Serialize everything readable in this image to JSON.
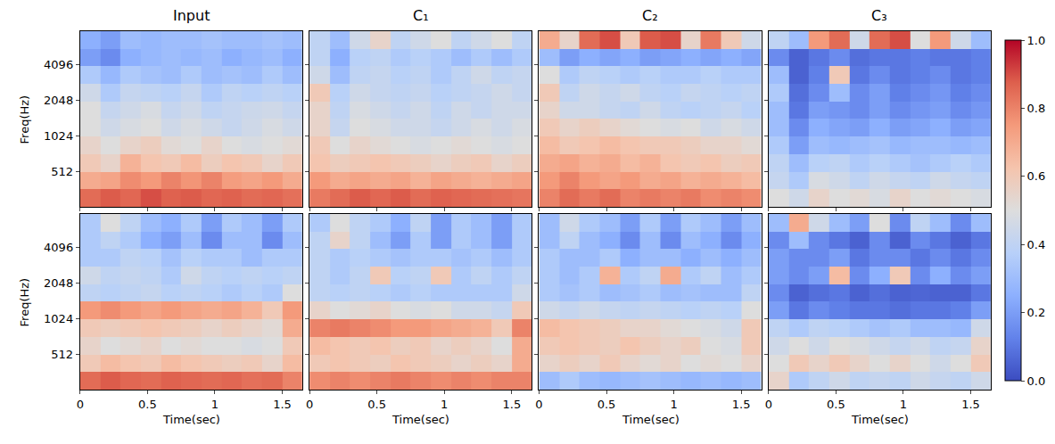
{
  "chart_data": {
    "type": "heatmap",
    "x_edges": [
      0,
      0.15,
      0.3,
      0.45,
      0.6,
      0.75,
      0.9,
      1.05,
      1.2,
      1.35,
      1.5,
      1.65
    ],
    "y_edges": [
      260,
      366,
      515,
      724,
      1019,
      1434,
      2018,
      2839,
      3995,
      5621,
      7900
    ],
    "xlim": [
      0,
      1.65
    ],
    "ylim": [
      260,
      7900
    ],
    "log": "y",
    "xticks": [
      0,
      0.5,
      1,
      1.5
    ],
    "yticks": [
      512,
      1024,
      2048,
      4096
    ],
    "colorbar": {
      "range": [
        0,
        1
      ],
      "ticks": [
        {
          "value": 0,
          "label": "0.0"
        },
        {
          "value": 0.2,
          "label": "0.2"
        },
        {
          "value": 0.4,
          "label": "0.4"
        },
        {
          "value": 0.6,
          "label": "0.6"
        },
        {
          "value": 0.8,
          "label": "0.8"
        },
        {
          "value": 1,
          "label": "1.0"
        }
      ]
    },
    "panels": [
      {
        "title": "Input",
        "ylabel": "Freq(Hz)",
        "tick_labels": "y",
        "z": [
          [
            0.85,
            0.88,
            0.86,
            0.9,
            0.87,
            0.88,
            0.86,
            0.87,
            0.85,
            0.86,
            0.84
          ],
          [
            0.7,
            0.72,
            0.78,
            0.75,
            0.8,
            0.76,
            0.8,
            0.74,
            0.72,
            0.75,
            0.7
          ],
          [
            0.6,
            0.55,
            0.68,
            0.62,
            0.6,
            0.65,
            0.58,
            0.62,
            0.6,
            0.55,
            0.6
          ],
          [
            0.55,
            0.5,
            0.55,
            0.58,
            0.52,
            0.5,
            0.55,
            0.5,
            0.48,
            0.5,
            0.52
          ],
          [
            0.5,
            0.45,
            0.48,
            0.5,
            0.45,
            0.48,
            0.45,
            0.42,
            0.45,
            0.48,
            0.45
          ],
          [
            0.5,
            0.42,
            0.45,
            0.48,
            0.42,
            0.45,
            0.4,
            0.42,
            0.44,
            0.45,
            0.42
          ],
          [
            0.45,
            0.35,
            0.42,
            0.4,
            0.38,
            0.42,
            0.35,
            0.4,
            0.38,
            0.4,
            0.38
          ],
          [
            0.35,
            0.28,
            0.35,
            0.32,
            0.3,
            0.35,
            0.3,
            0.32,
            0.3,
            0.35,
            0.3
          ],
          [
            0.2,
            0.15,
            0.25,
            0.28,
            0.3,
            0.28,
            0.3,
            0.25,
            0.28,
            0.3,
            0.25
          ],
          [
            0.25,
            0.2,
            0.3,
            0.28,
            0.3,
            0.3,
            0.32,
            0.3,
            0.3,
            0.32,
            0.3
          ]
        ]
      },
      {
        "title": "C₁",
        "tick_labels": false,
        "z": [
          [
            0.82,
            0.85,
            0.88,
            0.86,
            0.88,
            0.85,
            0.87,
            0.86,
            0.85,
            0.84,
            0.83
          ],
          [
            0.75,
            0.7,
            0.72,
            0.7,
            0.72,
            0.68,
            0.72,
            0.7,
            0.68,
            0.7,
            0.72
          ],
          [
            0.62,
            0.58,
            0.6,
            0.62,
            0.6,
            0.58,
            0.55,
            0.58,
            0.6,
            0.55,
            0.58
          ],
          [
            0.6,
            0.5,
            0.55,
            0.52,
            0.5,
            0.48,
            0.5,
            0.52,
            0.5,
            0.48,
            0.5
          ],
          [
            0.55,
            0.42,
            0.5,
            0.48,
            0.45,
            0.45,
            0.42,
            0.45,
            0.48,
            0.45,
            0.48
          ],
          [
            0.55,
            0.4,
            0.48,
            0.45,
            0.42,
            0.45,
            0.4,
            0.45,
            0.42,
            0.45,
            0.45
          ],
          [
            0.6,
            0.38,
            0.45,
            0.42,
            0.4,
            0.42,
            0.38,
            0.4,
            0.42,
            0.45,
            0.42
          ],
          [
            0.45,
            0.3,
            0.4,
            0.42,
            0.38,
            0.4,
            0.35,
            0.4,
            0.45,
            0.4,
            0.42
          ],
          [
            0.4,
            0.25,
            0.38,
            0.4,
            0.35,
            0.38,
            0.35,
            0.3,
            0.35,
            0.3,
            0.35
          ],
          [
            0.4,
            0.3,
            0.45,
            0.55,
            0.4,
            0.45,
            0.5,
            0.4,
            0.45,
            0.5,
            0.4
          ]
        ]
      },
      {
        "title": "C₂",
        "tick_labels": false,
        "z": [
          [
            0.8,
            0.85,
            0.82,
            0.85,
            0.8,
            0.82,
            0.8,
            0.82,
            0.78,
            0.8,
            0.78
          ],
          [
            0.75,
            0.8,
            0.75,
            0.72,
            0.75,
            0.7,
            0.72,
            0.68,
            0.7,
            0.68,
            0.65
          ],
          [
            0.7,
            0.72,
            0.68,
            0.7,
            0.65,
            0.68,
            0.62,
            0.6,
            0.62,
            0.58,
            0.6
          ],
          [
            0.65,
            0.6,
            0.62,
            0.65,
            0.62,
            0.6,
            0.6,
            0.58,
            0.55,
            0.55,
            0.52
          ],
          [
            0.6,
            0.55,
            0.58,
            0.55,
            0.52,
            0.5,
            0.48,
            0.5,
            0.45,
            0.48,
            0.45
          ],
          [
            0.55,
            0.45,
            0.45,
            0.42,
            0.4,
            0.45,
            0.4,
            0.38,
            0.4,
            0.42,
            0.38
          ],
          [
            0.6,
            0.4,
            0.45,
            0.42,
            0.45,
            0.4,
            0.38,
            0.42,
            0.4,
            0.38,
            0.4
          ],
          [
            0.5,
            0.35,
            0.4,
            0.38,
            0.35,
            0.38,
            0.35,
            0.35,
            0.38,
            0.35,
            0.35
          ],
          [
            0.3,
            0.2,
            0.25,
            0.22,
            0.25,
            0.2,
            0.22,
            0.25,
            0.22,
            0.25,
            0.22
          ],
          [
            0.7,
            0.55,
            0.85,
            0.9,
            0.6,
            0.88,
            0.9,
            0.55,
            0.82,
            0.6,
            0.45
          ]
        ]
      },
      {
        "title": "C₃",
        "tick_labels": false,
        "z": [
          [
            0.5,
            0.45,
            0.55,
            0.5,
            0.52,
            0.48,
            0.55,
            0.5,
            0.52,
            0.5,
            0.48
          ],
          [
            0.42,
            0.35,
            0.48,
            0.45,
            0.4,
            0.45,
            0.42,
            0.4,
            0.45,
            0.42,
            0.4
          ],
          [
            0.4,
            0.3,
            0.38,
            0.4,
            0.35,
            0.38,
            0.35,
            0.32,
            0.35,
            0.38,
            0.35
          ],
          [
            0.35,
            0.2,
            0.3,
            0.28,
            0.3,
            0.32,
            0.28,
            0.3,
            0.3,
            0.28,
            0.3
          ],
          [
            0.3,
            0.15,
            0.25,
            0.22,
            0.2,
            0.25,
            0.2,
            0.22,
            0.25,
            0.2,
            0.22
          ],
          [
            0.3,
            0.1,
            0.2,
            0.18,
            0.15,
            0.2,
            0.15,
            0.18,
            0.2,
            0.15,
            0.18
          ],
          [
            0.35,
            0.08,
            0.15,
            0.3,
            0.15,
            0.2,
            0.12,
            0.15,
            0.18,
            0.12,
            0.15
          ],
          [
            0.3,
            0.05,
            0.12,
            0.6,
            0.1,
            0.15,
            0.1,
            0.12,
            0.15,
            0.1,
            0.12
          ],
          [
            0.15,
            0.05,
            0.1,
            0.15,
            0.08,
            0.1,
            0.1,
            0.12,
            0.1,
            0.1,
            0.12
          ],
          [
            0.4,
            0.3,
            0.75,
            0.85,
            0.45,
            0.85,
            0.9,
            0.5,
            0.75,
            0.45,
            0.3
          ]
        ]
      },
      {
        "xlabel": "Time(sec)",
        "ylabel": "Freq(Hz)",
        "tick_labels": true,
        "z": [
          [
            0.85,
            0.88,
            0.86,
            0.85,
            0.87,
            0.86,
            0.85,
            0.86,
            0.84,
            0.85,
            0.8
          ],
          [
            0.6,
            0.65,
            0.62,
            0.6,
            0.65,
            0.62,
            0.6,
            0.58,
            0.6,
            0.55,
            0.65
          ],
          [
            0.55,
            0.5,
            0.52,
            0.55,
            0.5,
            0.52,
            0.5,
            0.5,
            0.48,
            0.5,
            0.6
          ],
          [
            0.6,
            0.58,
            0.6,
            0.62,
            0.6,
            0.58,
            0.55,
            0.58,
            0.55,
            0.52,
            0.7
          ],
          [
            0.75,
            0.78,
            0.75,
            0.72,
            0.75,
            0.72,
            0.7,
            0.72,
            0.68,
            0.6,
            0.75
          ],
          [
            0.4,
            0.38,
            0.4,
            0.42,
            0.38,
            0.4,
            0.38,
            0.35,
            0.38,
            0.35,
            0.5
          ],
          [
            0.45,
            0.4,
            0.42,
            0.4,
            0.35,
            0.45,
            0.4,
            0.38,
            0.4,
            0.38,
            0.4
          ],
          [
            0.35,
            0.35,
            0.4,
            0.38,
            0.32,
            0.38,
            0.35,
            0.35,
            0.3,
            0.35,
            0.35
          ],
          [
            0.35,
            0.4,
            0.35,
            0.25,
            0.2,
            0.3,
            0.15,
            0.3,
            0.3,
            0.15,
            0.3
          ],
          [
            0.35,
            0.5,
            0.4,
            0.3,
            0.25,
            0.35,
            0.2,
            0.35,
            0.3,
            0.2,
            0.35
          ]
        ]
      },
      {
        "xlabel": "Time(sec)",
        "tick_labels": "x",
        "z": [
          [
            0.78,
            0.8,
            0.78,
            0.8,
            0.82,
            0.8,
            0.78,
            0.8,
            0.78,
            0.8,
            0.8
          ],
          [
            0.6,
            0.62,
            0.6,
            0.58,
            0.62,
            0.6,
            0.58,
            0.55,
            0.58,
            0.55,
            0.7
          ],
          [
            0.65,
            0.62,
            0.6,
            0.62,
            0.58,
            0.6,
            0.55,
            0.58,
            0.55,
            0.5,
            0.7
          ],
          [
            0.8,
            0.82,
            0.8,
            0.78,
            0.75,
            0.75,
            0.72,
            0.7,
            0.68,
            0.6,
            0.8
          ],
          [
            0.55,
            0.5,
            0.52,
            0.55,
            0.5,
            0.48,
            0.5,
            0.45,
            0.45,
            0.42,
            0.6
          ],
          [
            0.4,
            0.38,
            0.4,
            0.38,
            0.35,
            0.38,
            0.35,
            0.35,
            0.35,
            0.35,
            0.45
          ],
          [
            0.4,
            0.35,
            0.4,
            0.6,
            0.38,
            0.4,
            0.6,
            0.35,
            0.4,
            0.35,
            0.4
          ],
          [
            0.4,
            0.35,
            0.38,
            0.35,
            0.32,
            0.35,
            0.35,
            0.32,
            0.35,
            0.3,
            0.35
          ],
          [
            0.4,
            0.55,
            0.4,
            0.3,
            0.2,
            0.35,
            0.2,
            0.35,
            0.3,
            0.2,
            0.35
          ],
          [
            0.35,
            0.5,
            0.4,
            0.35,
            0.25,
            0.4,
            0.2,
            0.35,
            0.3,
            0.2,
            0.35
          ]
        ]
      },
      {
        "xlabel": "Time(sec)",
        "tick_labels": "x",
        "z": [
          [
            0.3,
            0.35,
            0.3,
            0.28,
            0.3,
            0.32,
            0.3,
            0.28,
            0.3,
            0.28,
            0.3
          ],
          [
            0.55,
            0.58,
            0.55,
            0.6,
            0.55,
            0.52,
            0.55,
            0.5,
            0.52,
            0.5,
            0.55
          ],
          [
            0.6,
            0.62,
            0.6,
            0.58,
            0.62,
            0.58,
            0.55,
            0.58,
            0.5,
            0.48,
            0.6
          ],
          [
            0.65,
            0.62,
            0.6,
            0.58,
            0.55,
            0.55,
            0.52,
            0.5,
            0.48,
            0.45,
            0.6
          ],
          [
            0.45,
            0.42,
            0.45,
            0.42,
            0.4,
            0.42,
            0.4,
            0.38,
            0.4,
            0.38,
            0.5
          ],
          [
            0.35,
            0.32,
            0.35,
            0.3,
            0.32,
            0.35,
            0.3,
            0.32,
            0.3,
            0.3,
            0.4
          ],
          [
            0.35,
            0.3,
            0.35,
            0.68,
            0.35,
            0.4,
            0.7,
            0.35,
            0.4,
            0.3,
            0.35
          ],
          [
            0.35,
            0.3,
            0.3,
            0.35,
            0.25,
            0.3,
            0.3,
            0.25,
            0.3,
            0.25,
            0.3
          ],
          [
            0.3,
            0.4,
            0.3,
            0.25,
            0.15,
            0.3,
            0.15,
            0.3,
            0.25,
            0.15,
            0.25
          ],
          [
            0.3,
            0.45,
            0.35,
            0.3,
            0.2,
            0.35,
            0.2,
            0.35,
            0.3,
            0.2,
            0.3
          ]
        ]
      },
      {
        "xlabel": "Time(sec)",
        "tick_labels": "x",
        "z": [
          [
            0.55,
            0.35,
            0.4,
            0.45,
            0.4,
            0.42,
            0.4,
            0.45,
            0.42,
            0.4,
            0.45
          ],
          [
            0.5,
            0.6,
            0.55,
            0.6,
            0.55,
            0.5,
            0.55,
            0.5,
            0.45,
            0.5,
            0.6
          ],
          [
            0.45,
            0.5,
            0.45,
            0.5,
            0.48,
            0.45,
            0.42,
            0.45,
            0.4,
            0.42,
            0.55
          ],
          [
            0.4,
            0.35,
            0.4,
            0.38,
            0.35,
            0.32,
            0.35,
            0.3,
            0.3,
            0.28,
            0.45
          ],
          [
            0.2,
            0.1,
            0.15,
            0.12,
            0.1,
            0.1,
            0.08,
            0.1,
            0.1,
            0.12,
            0.2
          ],
          [
            0.15,
            0.05,
            0.08,
            0.1,
            0.05,
            0.08,
            0.05,
            0.06,
            0.05,
            0.05,
            0.1
          ],
          [
            0.2,
            0.15,
            0.2,
            0.65,
            0.15,
            0.25,
            0.6,
            0.15,
            0.25,
            0.15,
            0.2
          ],
          [
            0.2,
            0.15,
            0.15,
            0.2,
            0.1,
            0.15,
            0.15,
            0.1,
            0.15,
            0.1,
            0.15
          ],
          [
            0.15,
            0.3,
            0.15,
            0.1,
            0.05,
            0.15,
            0.05,
            0.15,
            0.1,
            0.05,
            0.1
          ],
          [
            0.3,
            0.7,
            0.45,
            0.3,
            0.2,
            0.5,
            0.15,
            0.4,
            0.3,
            0.15,
            0.3
          ]
        ]
      }
    ]
  }
}
